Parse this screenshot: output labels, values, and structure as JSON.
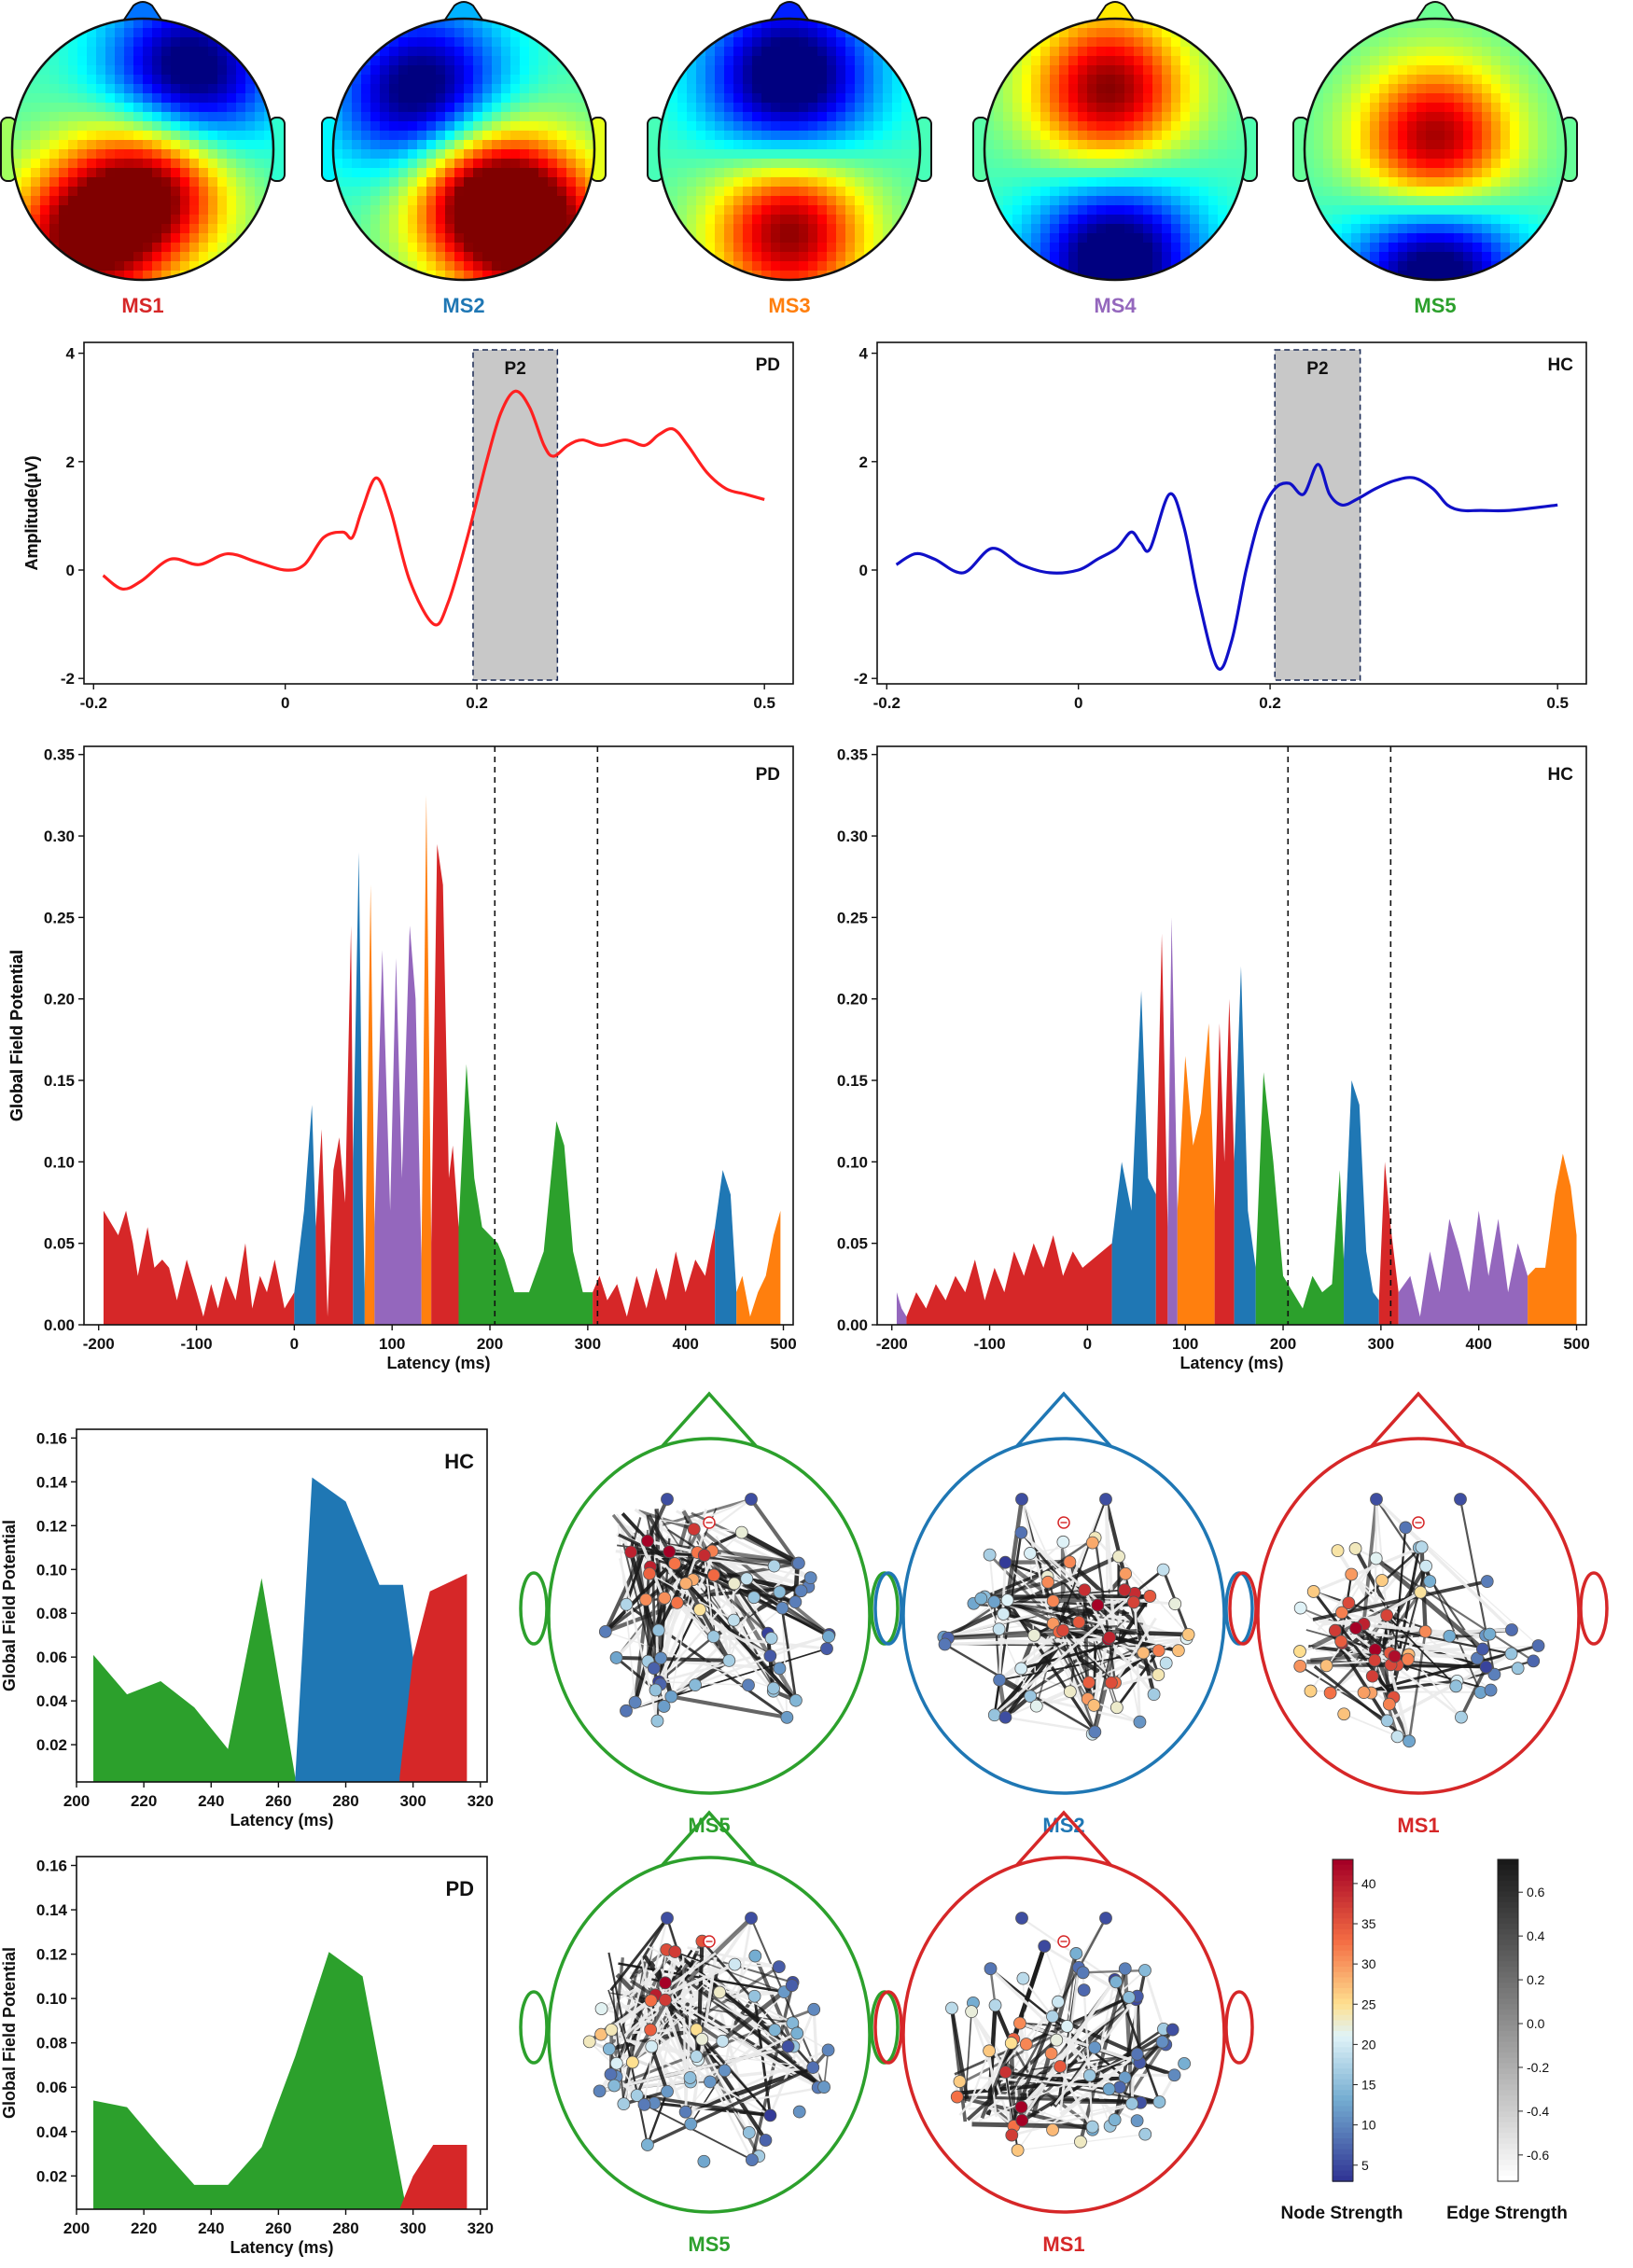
{
  "colors": {
    "MS1": "#d62728",
    "MS2": "#1f77b4",
    "MS3": "#ff7f0e",
    "MS4": "#9467bd",
    "MS5": "#2ca02c",
    "pd_erp": "#ff2020",
    "hc_erp": "#1010c8",
    "p2_window": "#c8c8c8"
  },
  "topomaps": [
    {
      "label": "MS1",
      "hot": [
        [
          -0.45,
          0.7
        ],
        [
          0.1,
          0.25
        ]
      ],
      "cold": [
        [
          0.35,
          -0.55
        ]
      ]
    },
    {
      "label": "MS2",
      "hot": [
        [
          0.55,
          0.65
        ],
        [
          0.1,
          0.3
        ]
      ],
      "cold": [
        [
          -0.3,
          -0.4
        ]
      ]
    },
    {
      "label": "MS3",
      "hot": [
        [
          0.0,
          0.62
        ]
      ],
      "cold": [
        [
          0.0,
          -0.55
        ]
      ]
    },
    {
      "label": "MS4",
      "hot": [
        [
          -0.05,
          -0.45
        ]
      ],
      "cold": [
        [
          0.0,
          0.85
        ]
      ]
    },
    {
      "label": "MS5",
      "hot": [
        [
          0.0,
          -0.05
        ]
      ],
      "cold": [
        [
          0.0,
          0.95
        ]
      ]
    }
  ],
  "chart_data": [
    {
      "type": "line",
      "panel": "erp-pd",
      "title": "PD",
      "ylabel": "Amplitude(μV)",
      "xlim": [
        -0.21,
        0.53
      ],
      "ylim": [
        -2.1,
        4.2
      ],
      "xticks": [
        -0.2,
        0,
        0.2,
        0.5
      ],
      "xtick_labels": [
        "-0.2",
        "0",
        "0.2",
        "0.5"
      ],
      "yticks": [
        -2,
        0,
        2,
        4
      ],
      "window": {
        "label": "P2",
        "x": [
          0.196,
          0.284
        ]
      },
      "x": [
        -0.19,
        -0.17,
        -0.15,
        -0.12,
        -0.09,
        -0.06,
        -0.03,
        0.0,
        0.02,
        0.04,
        0.06,
        0.07,
        0.08,
        0.095,
        0.11,
        0.13,
        0.155,
        0.17,
        0.19,
        0.21,
        0.225,
        0.24,
        0.255,
        0.27,
        0.28,
        0.295,
        0.31,
        0.33,
        0.355,
        0.375,
        0.39,
        0.405,
        0.42,
        0.44,
        0.46,
        0.48,
        0.5
      ],
      "y": [
        -0.1,
        -0.35,
        -0.2,
        0.2,
        0.1,
        0.3,
        0.15,
        0.0,
        0.1,
        0.6,
        0.7,
        0.6,
        1.1,
        1.7,
        1.1,
        -0.2,
        -1.0,
        -0.6,
        0.6,
        2.0,
        2.9,
        3.3,
        3.0,
        2.3,
        2.1,
        2.3,
        2.4,
        2.3,
        2.4,
        2.3,
        2.5,
        2.6,
        2.3,
        1.8,
        1.5,
        1.4,
        1.3
      ]
    },
    {
      "type": "line",
      "panel": "erp-hc",
      "title": "HC",
      "ylabel": "Amplitude(μV)",
      "xlim": [
        -0.21,
        0.53
      ],
      "ylim": [
        -2.1,
        4.2
      ],
      "xticks": [
        -0.2,
        0,
        0.2,
        0.5
      ],
      "xtick_labels": [
        "-0.2",
        "0",
        "0.2",
        "0.5"
      ],
      "yticks": [
        -2,
        0,
        2,
        4
      ],
      "window": {
        "label": "P2",
        "x": [
          0.205,
          0.294
        ]
      },
      "x": [
        -0.19,
        -0.17,
        -0.15,
        -0.12,
        -0.09,
        -0.06,
        -0.03,
        0.0,
        0.02,
        0.04,
        0.055,
        0.065,
        0.075,
        0.095,
        0.11,
        0.125,
        0.145,
        0.16,
        0.175,
        0.19,
        0.205,
        0.22,
        0.235,
        0.25,
        0.262,
        0.275,
        0.29,
        0.31,
        0.33,
        0.35,
        0.37,
        0.385,
        0.4,
        0.42,
        0.45,
        0.5
      ],
      "y": [
        0.1,
        0.3,
        0.2,
        -0.05,
        0.4,
        0.1,
        -0.05,
        0.0,
        0.2,
        0.4,
        0.7,
        0.5,
        0.4,
        1.4,
        0.8,
        -0.5,
        -1.8,
        -1.3,
        0.0,
        1.0,
        1.5,
        1.6,
        1.4,
        1.95,
        1.4,
        1.2,
        1.3,
        1.5,
        1.65,
        1.7,
        1.5,
        1.2,
        1.1,
        1.1,
        1.1,
        1.2
      ]
    },
    {
      "type": "area",
      "panel": "gfp-pd",
      "title": "PD",
      "xlabel": "Latency (ms)",
      "ylabel": "Global Field Potential",
      "xlim": [
        -215,
        510
      ],
      "ylim": [
        0,
        0.355
      ],
      "xticks": [
        -200,
        -100,
        0,
        100,
        200,
        300,
        400,
        500
      ],
      "yticks": [
        0.0,
        0.05,
        0.1,
        0.15,
        0.2,
        0.25,
        0.3,
        0.35
      ],
      "ytick_labels": [
        "0.00",
        "0.05",
        "0.10",
        "0.15",
        "0.20",
        "0.25",
        "0.30",
        "0.35"
      ],
      "vlines": [
        205,
        310
      ],
      "segments": [
        {
          "state": "MS1",
          "x": [
            -195,
            -190,
            -180,
            -172,
            -165,
            -160,
            -150,
            -143,
            -135,
            -128,
            -120,
            -110,
            -100,
            -93,
            -85,
            -78,
            -70,
            -60,
            -50,
            -43,
            -35,
            -28,
            -20,
            -10,
            0
          ],
          "y": [
            0.07,
            0.065,
            0.055,
            0.07,
            0.05,
            0.03,
            0.06,
            0.035,
            0.04,
            0.035,
            0.015,
            0.04,
            0.02,
            0.005,
            0.025,
            0.01,
            0.03,
            0.015,
            0.05,
            0.01,
            0.03,
            0.02,
            0.04,
            0.01,
            0.02
          ]
        },
        {
          "state": "MS2",
          "x": [
            0,
            10,
            18,
            22
          ],
          "y": [
            0.02,
            0.07,
            0.135,
            0.06
          ]
        },
        {
          "state": "MS1",
          "x": [
            22,
            28,
            34,
            40,
            46,
            52,
            58,
            60
          ],
          "y": [
            0.06,
            0.12,
            0.005,
            0.095,
            0.115,
            0.075,
            0.245,
            0.1
          ]
        },
        {
          "state": "MS2",
          "x": [
            60,
            66,
            70,
            72
          ],
          "y": [
            0.1,
            0.29,
            0.08,
            0.02
          ]
        },
        {
          "state": "MS3",
          "x": [
            72,
            78,
            82
          ],
          "y": [
            0.02,
            0.27,
            0.06
          ]
        },
        {
          "state": "MS4",
          "x": [
            82,
            90,
            98,
            104,
            110,
            118,
            124,
            130
          ],
          "y": [
            0.06,
            0.23,
            0.07,
            0.225,
            0.09,
            0.245,
            0.2,
            0.04
          ]
        },
        {
          "state": "MS3",
          "x": [
            130,
            135,
            140
          ],
          "y": [
            0.04,
            0.325,
            0.05
          ]
        },
        {
          "state": "MS1",
          "x": [
            140,
            146,
            152,
            158,
            162,
            168
          ],
          "y": [
            0.05,
            0.295,
            0.27,
            0.09,
            0.11,
            0.06
          ]
        },
        {
          "state": "MS5",
          "x": [
            168,
            176,
            184,
            192,
            200,
            208,
            215,
            225,
            240,
            255,
            268,
            276,
            285,
            295,
            305
          ],
          "y": [
            0.06,
            0.16,
            0.09,
            0.06,
            0.055,
            0.05,
            0.04,
            0.02,
            0.02,
            0.045,
            0.125,
            0.11,
            0.045,
            0.02,
            0.02
          ]
        },
        {
          "state": "MS1",
          "x": [
            305,
            312,
            320,
            330,
            340,
            350,
            360,
            370,
            380,
            390,
            400,
            410,
            420,
            430
          ],
          "y": [
            0.02,
            0.03,
            0.015,
            0.025,
            0.005,
            0.03,
            0.01,
            0.035,
            0.015,
            0.045,
            0.02,
            0.04,
            0.03,
            0.06
          ]
        },
        {
          "state": "MS2",
          "x": [
            430,
            438,
            446,
            452
          ],
          "y": [
            0.06,
            0.095,
            0.08,
            0.02
          ]
        },
        {
          "state": "MS3",
          "x": [
            452,
            458,
            466,
            474,
            482,
            490,
            497
          ],
          "y": [
            0.02,
            0.03,
            0.005,
            0.02,
            0.03,
            0.055,
            0.07
          ]
        }
      ]
    },
    {
      "type": "area",
      "panel": "gfp-hc",
      "title": "HC",
      "xlabel": "Latency (ms)",
      "ylabel": "Global Field Potential",
      "xlim": [
        -215,
        510
      ],
      "ylim": [
        0,
        0.355
      ],
      "xticks": [
        -200,
        -100,
        0,
        100,
        200,
        300,
        400,
        500
      ],
      "yticks": [
        0.0,
        0.05,
        0.1,
        0.15,
        0.2,
        0.25,
        0.3,
        0.35
      ],
      "ytick_labels": [
        "0.00",
        "0.05",
        "0.10",
        "0.15",
        "0.20",
        "0.25",
        "0.30",
        "0.35"
      ],
      "vlines": [
        205,
        310
      ],
      "segments": [
        {
          "state": "MS4",
          "x": [
            -195,
            -190,
            -185
          ],
          "y": [
            0.02,
            0.01,
            0.005
          ]
        },
        {
          "state": "MS1",
          "x": [
            -185,
            -175,
            -165,
            -155,
            -145,
            -135,
            -125,
            -115,
            -105,
            -95,
            -85,
            -75,
            -65,
            -55,
            -45,
            -35,
            -25,
            -15,
            -5,
            5,
            15,
            25
          ],
          "y": [
            0.005,
            0.02,
            0.01,
            0.025,
            0.015,
            0.03,
            0.02,
            0.04,
            0.015,
            0.035,
            0.02,
            0.045,
            0.03,
            0.05,
            0.035,
            0.055,
            0.03,
            0.045,
            0.035,
            0.04,
            0.045,
            0.05
          ]
        },
        {
          "state": "MS2",
          "x": [
            25,
            35,
            45,
            55,
            62,
            70
          ],
          "y": [
            0.05,
            0.1,
            0.07,
            0.205,
            0.09,
            0.08
          ]
        },
        {
          "state": "MS1",
          "x": [
            70,
            76,
            82
          ],
          "y": [
            0.08,
            0.24,
            0.06
          ]
        },
        {
          "state": "MS4",
          "x": [
            82,
            86,
            92
          ],
          "y": [
            0.06,
            0.25,
            0.07
          ]
        },
        {
          "state": "MS3",
          "x": [
            92,
            100,
            108,
            116,
            124,
            130
          ],
          "y": [
            0.07,
            0.165,
            0.11,
            0.13,
            0.185,
            0.07
          ]
        },
        {
          "state": "MS1",
          "x": [
            130,
            135,
            140,
            145,
            150
          ],
          "y": [
            0.07,
            0.185,
            0.1,
            0.2,
            0.1
          ]
        },
        {
          "state": "MS2",
          "x": [
            150,
            157,
            164,
            172
          ],
          "y": [
            0.1,
            0.22,
            0.07,
            0.035
          ]
        },
        {
          "state": "MS5",
          "x": [
            172,
            180,
            190,
            200,
            210,
            220,
            230,
            240,
            250,
            258,
            262
          ],
          "y": [
            0.035,
            0.155,
            0.1,
            0.03,
            0.02,
            0.01,
            0.03,
            0.02,
            0.025,
            0.095,
            0.04
          ]
        },
        {
          "state": "MS2",
          "x": [
            262,
            270,
            278,
            285,
            292,
            298
          ],
          "y": [
            0.04,
            0.15,
            0.135,
            0.045,
            0.02,
            0.015
          ]
        },
        {
          "state": "MS1",
          "x": [
            298,
            304,
            310,
            318
          ],
          "y": [
            0.015,
            0.1,
            0.06,
            0.02
          ]
        },
        {
          "state": "MS4",
          "x": [
            318,
            330,
            340,
            350,
            360,
            370,
            380,
            390,
            400,
            410,
            420,
            430,
            440,
            450
          ],
          "y": [
            0.02,
            0.03,
            0.005,
            0.045,
            0.02,
            0.065,
            0.045,
            0.02,
            0.07,
            0.03,
            0.065,
            0.02,
            0.05,
            0.03
          ]
        },
        {
          "state": "MS3",
          "x": [
            450,
            458,
            468,
            478,
            486,
            494,
            500
          ],
          "y": [
            0.03,
            0.035,
            0.035,
            0.08,
            0.105,
            0.085,
            0.055
          ]
        }
      ]
    },
    {
      "type": "area",
      "panel": "p2-gfp-hc",
      "title": "HC",
      "xlabel": "Latency (ms)",
      "ylabel": "Global Field Potential",
      "xlim": [
        200,
        322
      ],
      "ylim": [
        0.003,
        0.164
      ],
      "xticks": [
        200,
        220,
        240,
        260,
        280,
        300,
        320
      ],
      "yticks": [
        0.02,
        0.04,
        0.06,
        0.08,
        0.1,
        0.12,
        0.14,
        0.16
      ],
      "ytick_labels": [
        "0.02",
        "0.04",
        "0.06",
        "0.08",
        "0.10",
        "0.12",
        "0.14",
        "0.16"
      ],
      "segments": [
        {
          "state": "MS5",
          "x": [
            205,
            215,
            225,
            235,
            245,
            255,
            265
          ],
          "y": [
            0.061,
            0.043,
            0.049,
            0.037,
            0.018,
            0.096,
            0.005
          ]
        },
        {
          "state": "MS2",
          "x": [
            265,
            270,
            280,
            290,
            297,
            300
          ],
          "y": [
            0.005,
            0.142,
            0.131,
            0.093,
            0.093,
            0.06
          ]
        },
        {
          "state": "MS1",
          "x": [
            296,
            300,
            305,
            316
          ],
          "y": [
            0.005,
            0.06,
            0.09,
            0.098
          ]
        }
      ]
    },
    {
      "type": "area",
      "panel": "p2-gfp-pd",
      "title": "PD",
      "xlabel": "Latency (ms)",
      "ylabel": "Global Field Potential",
      "xlim": [
        200,
        322
      ],
      "ylim": [
        0.005,
        0.164
      ],
      "xticks": [
        200,
        220,
        240,
        260,
        280,
        300,
        320
      ],
      "yticks": [
        0.02,
        0.04,
        0.06,
        0.08,
        0.1,
        0.12,
        0.14,
        0.16
      ],
      "ytick_labels": [
        "0.02",
        "0.04",
        "0.06",
        "0.08",
        "0.10",
        "0.12",
        "0.14",
        "0.16"
      ],
      "segments": [
        {
          "state": "MS5",
          "x": [
            205,
            215,
            225,
            235,
            245,
            255,
            265,
            275,
            285,
            298
          ],
          "y": [
            0.054,
            0.051,
            0.033,
            0.016,
            0.016,
            0.033,
            0.074,
            0.121,
            0.11,
            0.005
          ]
        },
        {
          "state": "MS1",
          "x": [
            296,
            300,
            306,
            316
          ],
          "y": [
            0.005,
            0.02,
            0.034,
            0.034
          ]
        }
      ]
    }
  ],
  "networks": {
    "hc": [
      {
        "label": "MS5"
      },
      {
        "label": "MS2"
      },
      {
        "label": "MS1"
      }
    ],
    "pd": [
      {
        "label": "MS5"
      },
      {
        "label": "MS1"
      }
    ]
  },
  "colorbars": {
    "node": {
      "label": "Node Strength",
      "ticks": [
        "40",
        "35",
        "30",
        "25",
        "20",
        "15",
        "10",
        "5"
      ],
      "range": [
        3,
        43
      ]
    },
    "edge": {
      "label": "Edge Strength",
      "ticks": [
        "0.6",
        "0.4",
        "0.2",
        "0.0",
        "-0.2",
        "-0.4",
        "-0.6"
      ],
      "range": [
        -0.72,
        0.75
      ]
    }
  }
}
